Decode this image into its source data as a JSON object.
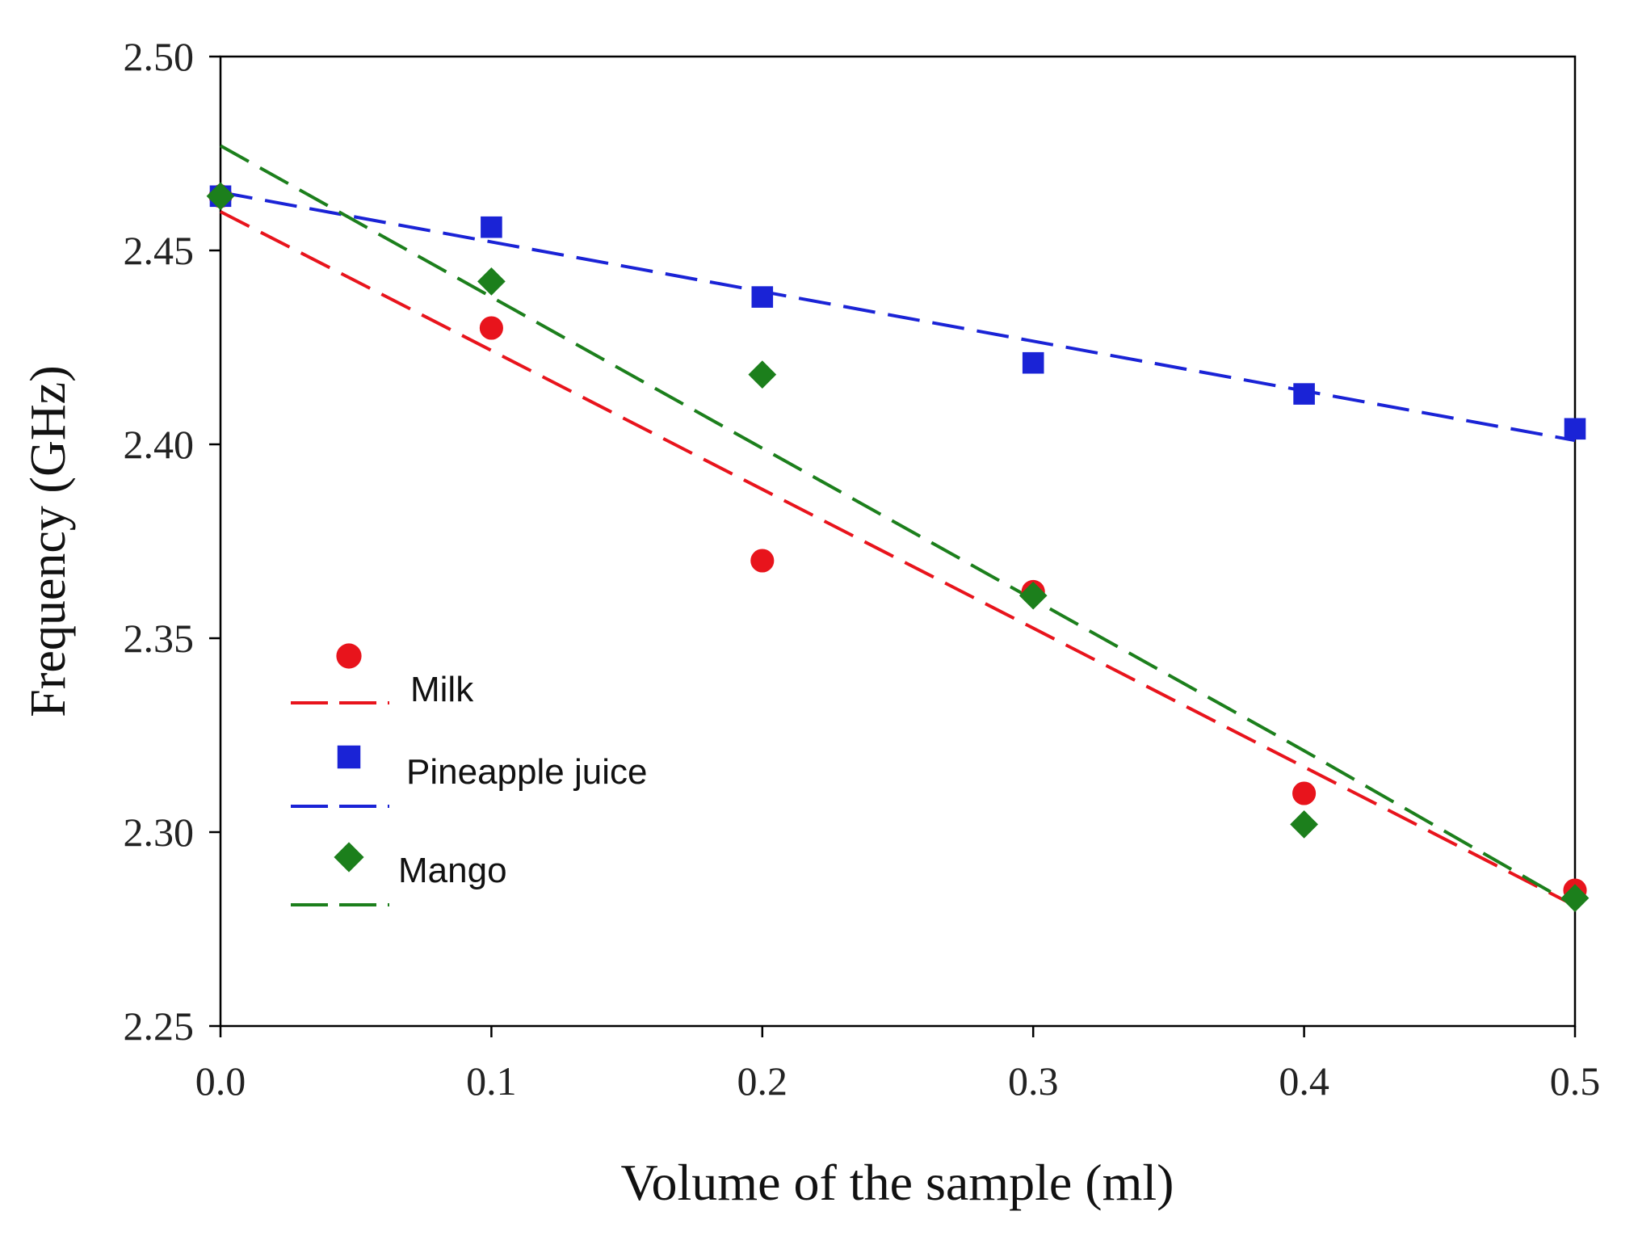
{
  "chart_data": {
    "type": "scatter",
    "title": "",
    "xlabel": "Volume of the sample (ml)",
    "ylabel": "Frequency (GHz)",
    "xlim": [
      0.0,
      0.5
    ],
    "ylim": [
      2.25,
      2.5
    ],
    "x_ticks": [
      0.0,
      0.1,
      0.2,
      0.3,
      0.4,
      0.5
    ],
    "x_tick_labels": [
      "0.0",
      "0.1",
      "0.2",
      "0.3",
      "0.4",
      "0.5"
    ],
    "y_ticks": [
      2.25,
      2.3,
      2.35,
      2.4,
      2.45,
      2.5
    ],
    "y_tick_labels": [
      "2.25",
      "2.30",
      "2.35",
      "2.40",
      "2.45",
      "2.50"
    ],
    "grid": false,
    "legend_position": "lower-left",
    "series": [
      {
        "name": "Milk",
        "color": "#e8141c",
        "marker": "circle",
        "x": [
          0.0,
          0.1,
          0.2,
          0.3,
          0.4,
          0.5
        ],
        "y": [
          2.464,
          2.43,
          2.37,
          2.362,
          2.31,
          2.285
        ],
        "fit": {
          "x": [
            0.0,
            0.5
          ],
          "y": [
            2.46,
            2.281
          ]
        }
      },
      {
        "name": "Pineapple juice",
        "color": "#1a23d6",
        "marker": "square",
        "x": [
          0.0,
          0.1,
          0.2,
          0.3,
          0.4,
          0.5
        ],
        "y": [
          2.464,
          2.456,
          2.438,
          2.421,
          2.413,
          2.404
        ],
        "fit": {
          "x": [
            0.0,
            0.5
          ],
          "y": [
            2.465,
            2.401
          ]
        }
      },
      {
        "name": "Mango",
        "color": "#1c7f1c",
        "marker": "diamond",
        "x": [
          0.0,
          0.1,
          0.2,
          0.3,
          0.4,
          0.5
        ],
        "y": [
          2.464,
          2.442,
          2.418,
          2.361,
          2.302,
          2.283
        ],
        "fit": {
          "x": [
            0.0,
            0.1,
            0.2,
            0.3,
            0.4,
            0.5
          ],
          "y": [
            2.477,
            2.438,
            2.399,
            2.36,
            2.321,
            2.281
          ]
        }
      }
    ]
  }
}
